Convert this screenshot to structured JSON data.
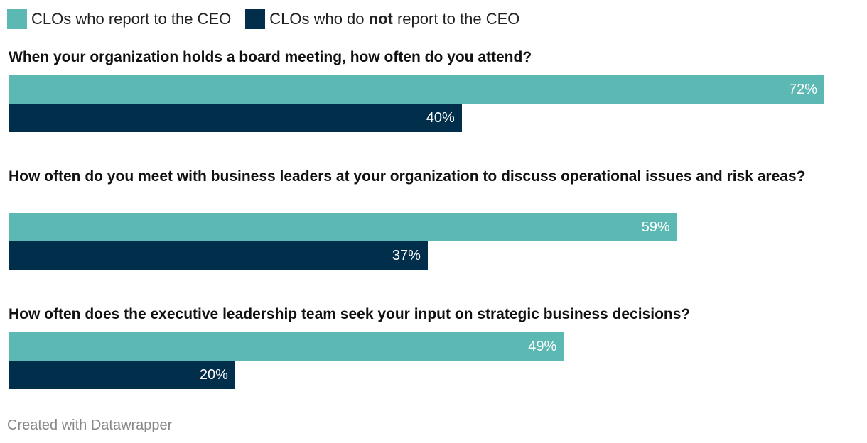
{
  "chart_data": {
    "type": "bar",
    "orientation": "horizontal",
    "xlim": [
      0,
      100
    ],
    "unit": "%",
    "legend": {
      "position": "top-left",
      "entries": [
        {
          "text": "CLOs who report to the CEO",
          "color": "#5cb8b2"
        },
        {
          "text_before": "CLOs who do ",
          "text_bold": "not",
          "text_after": " report to the CEO",
          "color": "#002e4b"
        }
      ]
    },
    "series": [
      {
        "name": "CLOs who report to the CEO",
        "color": "#5cb8b2",
        "values": [
          72,
          59,
          49
        ]
      },
      {
        "name": "CLOs who do not report to the CEO",
        "color": "#002e4b",
        "values": [
          40,
          37,
          20
        ]
      }
    ],
    "categories": [
      "When your organization holds a board meeting, how often do you attend?",
      "How often do you meet with business leaders at your organization to discuss operational issues and risk areas?",
      "How often does the executive leadership team seek your input on strategic business decisions?"
    ],
    "data_labels": [
      [
        "72%",
        "59%",
        "49%"
      ],
      [
        "40%",
        "37%",
        "20%"
      ]
    ]
  },
  "footer": "Created with Datawrapper"
}
